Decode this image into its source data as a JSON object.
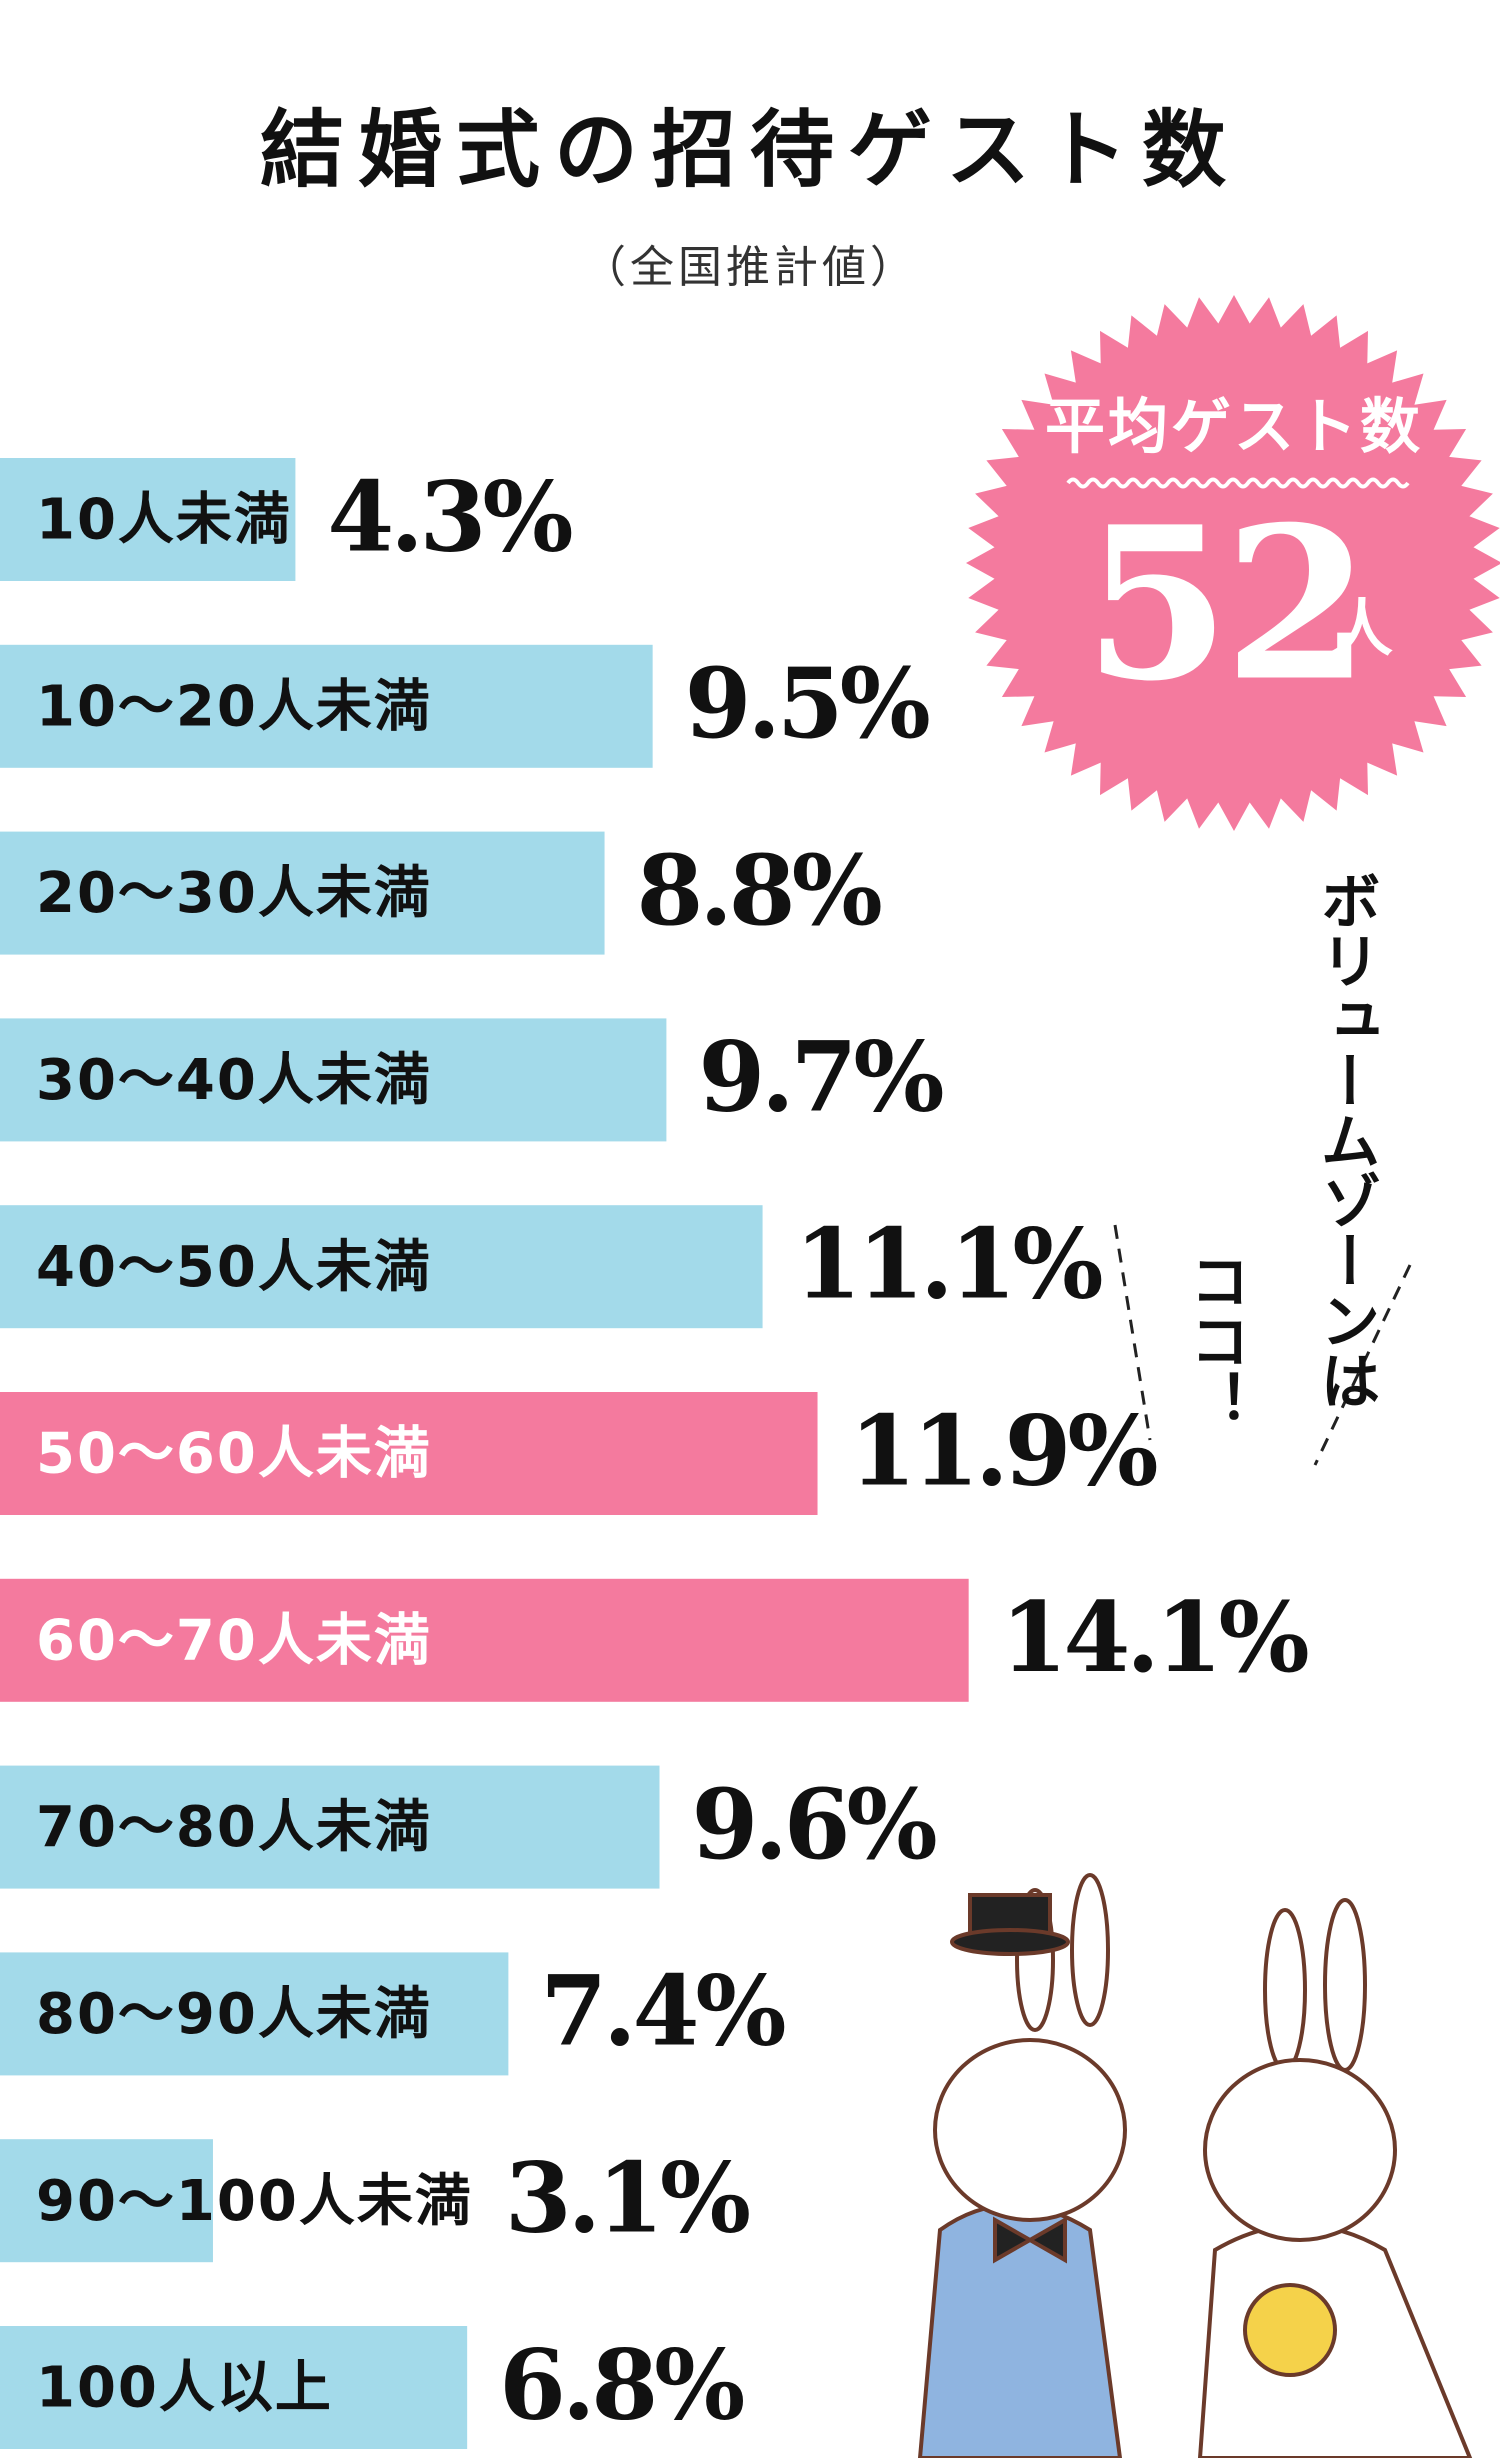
{
  "chart_data": {
    "type": "bar",
    "orientation": "horizontal",
    "title": "結婚式の招待ゲスト数",
    "subtitle": "（全国推計値）",
    "categories": [
      "10人未満",
      "10〜20人未満",
      "20〜30人未満",
      "30〜40人未満",
      "40〜50人未満",
      "50〜60人未満",
      "60〜70人未満",
      "70〜80人未満",
      "80〜90人未満",
      "90〜100人未満",
      "100人以上"
    ],
    "values": [
      4.3,
      9.5,
      8.8,
      9.7,
      11.1,
      11.9,
      14.1,
      9.6,
      7.4,
      3.1,
      6.8
    ],
    "value_labels": [
      "4.3%",
      "9.5%",
      "8.8%",
      "9.7%",
      "11.1%",
      "11.9%",
      "14.1%",
      "9.6%",
      "7.4%",
      "3.1%",
      "6.8%"
    ],
    "colors": [
      "#a3daea",
      "#a3daea",
      "#a3daea",
      "#a3daea",
      "#a3daea",
      "#f47a9e",
      "#f47a9e",
      "#a3daea",
      "#a3daea",
      "#a3daea",
      "#a3daea"
    ],
    "badge": {
      "label": "平均ゲスト数",
      "value": 52,
      "unit": "人",
      "color": "#f47a9e"
    },
    "annotation": [
      "ボリュームゾーンは",
      "ココ！"
    ]
  }
}
